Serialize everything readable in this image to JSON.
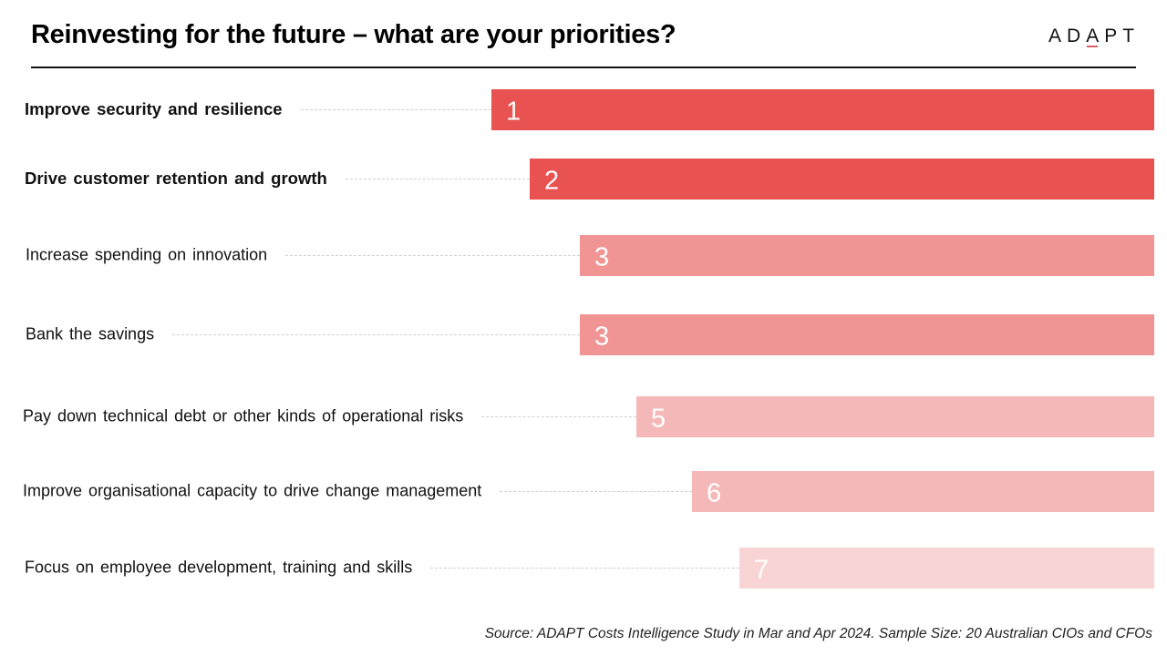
{
  "header": {
    "title": "Reinvesting for the future – what are your priorities?",
    "logo": {
      "prefix": "AD",
      "accent_letter": "A",
      "suffix": "PT",
      "accent_color": "#d9606a"
    }
  },
  "footer": {
    "source": "Source: ADAPT Costs Intelligence Study in Mar and Apr 2024. Sample Size: 20 Australian CIOs and CFOs"
  },
  "chart_data": {
    "type": "bar",
    "orientation": "horizontal",
    "title": "Reinvesting for the future – what are your priorities?",
    "xlabel": "",
    "ylabel": "",
    "grid": false,
    "legend": "none",
    "value_meaning": "priority rank (1 = highest); longer bar = higher priority",
    "categories": [
      "Improve security and resilience",
      "Drive customer retention and growth",
      "Increase spending on innovation",
      "Bank the savings",
      "Pay down technical debt or other kinds of operational risks",
      "Improve organisational capacity to drive change management",
      "Focus on employee development, training and skills"
    ],
    "values": [
      1,
      2,
      3,
      3,
      5,
      6,
      7
    ],
    "data_labels": [
      "1",
      "2",
      "3",
      "3",
      "5",
      "6",
      "7"
    ],
    "bold_categories": [
      true,
      true,
      false,
      false,
      false,
      false,
      false
    ],
    "colors": [
      "#e85250",
      "#e85250",
      "#f09593",
      "#f09593",
      "#f5b8b8",
      "#f5b8b8",
      "#f9d4d4"
    ]
  }
}
